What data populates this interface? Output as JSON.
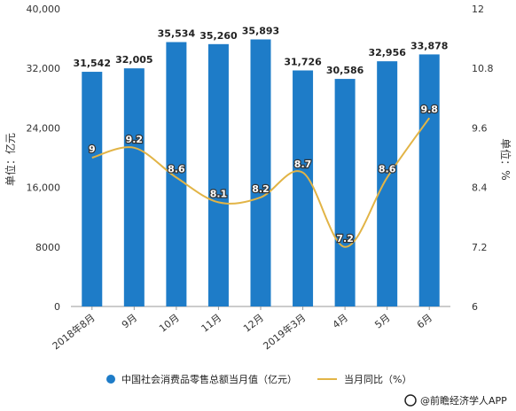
{
  "chart_data": {
    "type": "bar",
    "categories": [
      "2018年8月",
      "9月",
      "10月",
      "11月",
      "12月",
      "2019年3月",
      "4月",
      "5月",
      "6月"
    ],
    "series": [
      {
        "name": "中国社会消费品零售总额当月值（亿元）",
        "type": "bar",
        "axis": "left",
        "values": [
          31542,
          32005,
          35534,
          35260,
          35893,
          31726,
          30586,
          32956,
          33878
        ],
        "labels": [
          "31,542",
          "32,005",
          "35,534",
          "35,260",
          "35,893",
          "31,726",
          "30,586",
          "32,956",
          "33,878"
        ],
        "color": "#1E7CC8"
      },
      {
        "name": "当月同比（%）",
        "type": "line",
        "axis": "right",
        "values": [
          9,
          9.2,
          8.6,
          8.1,
          8.2,
          8.7,
          7.2,
          8.6,
          9.8
        ],
        "labels": [
          "9",
          "9.2",
          "8.6",
          "8.1",
          "8.2",
          "8.7",
          "7.2",
          "8.6",
          "9.8"
        ],
        "color": "#E2B446"
      }
    ],
    "ylabel": "单位：亿元",
    "ylabel_right": "单位：%",
    "ylim": [
      0,
      40000
    ],
    "ylim_right": [
      6,
      12
    ],
    "yticks": [
      0,
      8000,
      16000,
      24000,
      32000,
      40000
    ],
    "ytick_labels": [
      "0",
      "8000",
      "16,000",
      "24,000",
      "32,000",
      "40,000"
    ],
    "yticks_right": [
      6,
      7.2,
      8.4,
      9.6,
      10.8,
      12
    ],
    "ytick_labels_right": [
      "6",
      "7.2",
      "8.4",
      "9.6",
      "10.8",
      "12"
    ],
    "grid": false,
    "legend_position": "bottom"
  },
  "source": "@前瞻经济学人APP"
}
